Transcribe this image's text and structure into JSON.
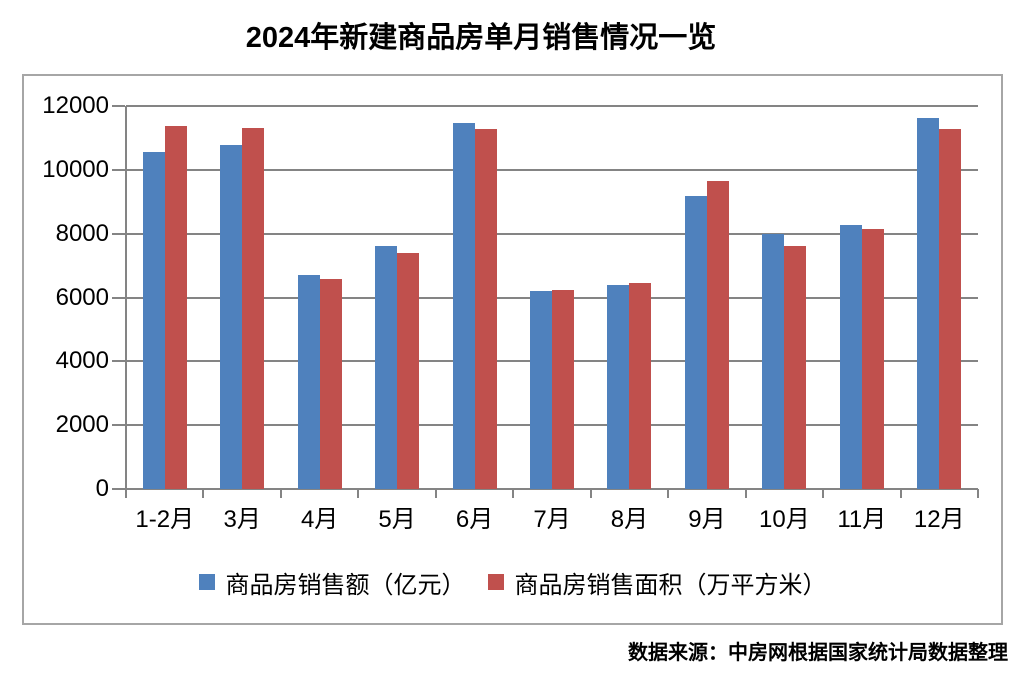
{
  "title": "2024年新建商品房单月销售情况一览",
  "source": "数据来源：中房网根据国家统计局数据整理",
  "colors": {
    "bar_blue": "#4F81BD",
    "bar_red": "#C0504D",
    "gridline": "#848484",
    "chart_border": "#A6A6A6",
    "text": "#000000"
  },
  "chart_data": {
    "type": "bar",
    "title": "2024年新建商品房单月销售情况一览",
    "categories": [
      "1-2月",
      "3月",
      "4月",
      "5月",
      "6月",
      "7月",
      "8月",
      "9月",
      "10月",
      "11月",
      "12月"
    ],
    "series": [
      {
        "name": "商品房销售额（亿元）",
        "color": "#4F81BD",
        "values": [
          10570,
          10790,
          6710,
          7600,
          11470,
          6200,
          6380,
          9190,
          7980,
          8270,
          11630
        ]
      },
      {
        "name": "商品房销售面积（万平方米）",
        "color": "#C0504D",
        "values": [
          11370,
          11300,
          6580,
          7390,
          11290,
          6240,
          6450,
          9660,
          7620,
          8160,
          11270
        ]
      }
    ],
    "xlabel": "",
    "ylabel": "",
    "ylim": [
      0,
      12000
    ],
    "ytick_step": 2000,
    "y_tick_labels": [
      "0",
      "2000",
      "4000",
      "6000",
      "8000",
      "10000",
      "12000"
    ],
    "grid": true,
    "legend_position": "bottom",
    "source_note": "数据来源：中房网根据国家统计局数据整理"
  }
}
